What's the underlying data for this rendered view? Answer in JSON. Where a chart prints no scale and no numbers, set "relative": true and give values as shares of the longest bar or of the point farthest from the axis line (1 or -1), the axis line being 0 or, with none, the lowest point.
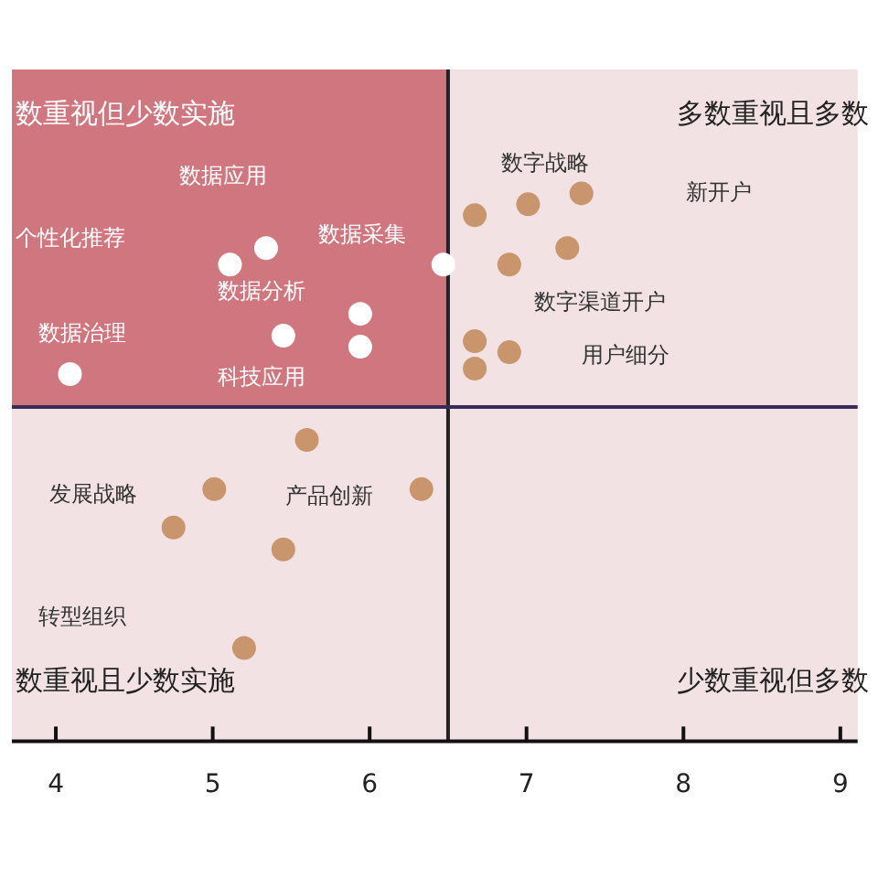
{
  "chart_data": {
    "type": "scatter",
    "relative": true,
    "legend": false,
    "marker": "circle",
    "xlim": [
      3.72,
      9.11
    ],
    "xticks": [
      4,
      5,
      6,
      7,
      8,
      9
    ],
    "series": [
      {
        "color": "#ffffff",
        "x": [
          5.11,
          5.34,
          6.47,
          5.94,
          5.45,
          5.94,
          4.09
        ],
        "values": [
          0.87,
          0.9,
          0.87,
          0.78,
          0.74,
          0.72,
          0.67
        ]
      },
      {
        "color": "#c8956c",
        "x": [
          6.67,
          7.01,
          7.35,
          7.26,
          6.89,
          6.67,
          6.89,
          6.67,
          5.6,
          5.01,
          6.33,
          4.75,
          5.45,
          5.2
        ],
        "values": [
          0.96,
          0.98,
          1,
          0.9,
          0.87,
          0.73,
          0.71,
          0.68,
          0.55,
          0.46,
          0.46,
          0.39,
          0.35,
          0.17
        ]
      }
    ],
    "ref_lines": [
      {
        "axis": "x",
        "value": 6.5,
        "color": "#222222"
      },
      {
        "axis": "y",
        "value": 0.61,
        "color": "#3a2a5a"
      }
    ],
    "bands": [
      {
        "axis": "x",
        "from": 3.72,
        "to": 6.5,
        "color": "#d0767f"
      }
    ],
    "annotations": [
      "数重视但少数实施",
      "多数重视且多数",
      "数重视且少数实施",
      "少数重视但多数",
      "数据应用",
      "个性化推荐",
      "数据采集",
      "数据分析",
      "数据治理",
      "科技应用",
      "数字战略",
      "新开户",
      "数字渠道开户",
      "用户细分",
      "发展战略",
      "产品创新",
      "转型组织"
    ]
  }
}
